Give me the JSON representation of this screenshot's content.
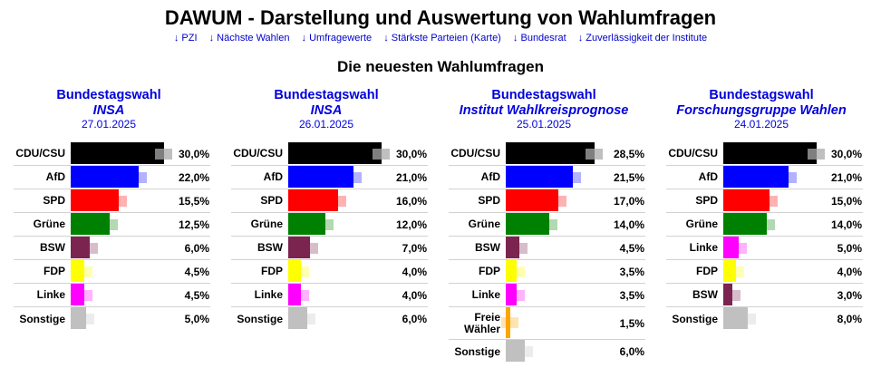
{
  "header": {
    "title": "DAWUM - Darstellung und Auswertung von Wahlumfragen",
    "nav": [
      {
        "arrow": "↓",
        "label": "PZI"
      },
      {
        "arrow": "↓",
        "label": "Nächste Wahlen"
      },
      {
        "arrow": "↓",
        "label": "Umfragewerte"
      },
      {
        "arrow": "↓",
        "label": "Stärkste Parteien (Karte)"
      },
      {
        "arrow": "↓",
        "label": "Bundesrat"
      },
      {
        "arrow": "↓",
        "label": "Zuverlässigkeit der Institute"
      }
    ],
    "subtitle": "Die neuesten Wahlumfragen"
  },
  "party_colors": {
    "CDU/CSU": "#000000",
    "AfD": "#0000ff",
    "SPD": "#ff0000",
    "Grüne": "#008000",
    "BSW": "#7b2450",
    "FDP": "#ffff00",
    "Linke": "#ff00ff",
    "Freie Wähler": "#ffa500",
    "Sonstige": "#c0c0c0"
  },
  "polls": [
    {
      "election": "Bundestagswahl",
      "institute": "INSA",
      "date": "27.01.2025",
      "results": [
        {
          "party": "CDU/CSU",
          "value": 30.0,
          "label": "30,0%"
        },
        {
          "party": "AfD",
          "value": 22.0,
          "label": "22,0%"
        },
        {
          "party": "SPD",
          "value": 15.5,
          "label": "15,5%"
        },
        {
          "party": "Grüne",
          "value": 12.5,
          "label": "12,5%"
        },
        {
          "party": "BSW",
          "value": 6.0,
          "label": "6,0%"
        },
        {
          "party": "FDP",
          "value": 4.5,
          "label": "4,5%"
        },
        {
          "party": "Linke",
          "value": 4.5,
          "label": "4,5%"
        },
        {
          "party": "Sonstige",
          "value": 5.0,
          "label": "5,0%"
        }
      ]
    },
    {
      "election": "Bundestagswahl",
      "institute": "INSA",
      "date": "26.01.2025",
      "results": [
        {
          "party": "CDU/CSU",
          "value": 30.0,
          "label": "30,0%"
        },
        {
          "party": "AfD",
          "value": 21.0,
          "label": "21,0%"
        },
        {
          "party": "SPD",
          "value": 16.0,
          "label": "16,0%"
        },
        {
          "party": "Grüne",
          "value": 12.0,
          "label": "12,0%"
        },
        {
          "party": "BSW",
          "value": 7.0,
          "label": "7,0%"
        },
        {
          "party": "FDP",
          "value": 4.0,
          "label": "4,0%"
        },
        {
          "party": "Linke",
          "value": 4.0,
          "label": "4,0%"
        },
        {
          "party": "Sonstige",
          "value": 6.0,
          "label": "6,0%"
        }
      ]
    },
    {
      "election": "Bundestagswahl",
      "institute": "Institut Wahlkreisprognose",
      "date": "25.01.2025",
      "results": [
        {
          "party": "CDU/CSU",
          "value": 28.5,
          "label": "28,5%"
        },
        {
          "party": "AfD",
          "value": 21.5,
          "label": "21,5%"
        },
        {
          "party": "SPD",
          "value": 17.0,
          "label": "17,0%"
        },
        {
          "party": "Grüne",
          "value": 14.0,
          "label": "14,0%"
        },
        {
          "party": "BSW",
          "value": 4.5,
          "label": "4,5%"
        },
        {
          "party": "FDP",
          "value": 3.5,
          "label": "3,5%"
        },
        {
          "party": "Linke",
          "value": 3.5,
          "label": "3,5%"
        },
        {
          "party": "Freie Wähler",
          "value": 1.5,
          "label": "1,5%"
        },
        {
          "party": "Sonstige",
          "value": 6.0,
          "label": "6,0%"
        }
      ]
    },
    {
      "election": "Bundestagswahl",
      "institute": "Forschungsgruppe Wahlen",
      "date": "24.01.2025",
      "results": [
        {
          "party": "CDU/CSU",
          "value": 30.0,
          "label": "30,0%"
        },
        {
          "party": "AfD",
          "value": 21.0,
          "label": "21,0%"
        },
        {
          "party": "SPD",
          "value": 15.0,
          "label": "15,0%"
        },
        {
          "party": "Grüne",
          "value": 14.0,
          "label": "14,0%"
        },
        {
          "party": "Linke",
          "value": 5.0,
          "label": "5,0%"
        },
        {
          "party": "FDP",
          "value": 4.0,
          "label": "4,0%"
        },
        {
          "party": "BSW",
          "value": 3.0,
          "label": "3,0%"
        },
        {
          "party": "Sonstige",
          "value": 8.0,
          "label": "8,0%"
        }
      ]
    }
  ]
}
